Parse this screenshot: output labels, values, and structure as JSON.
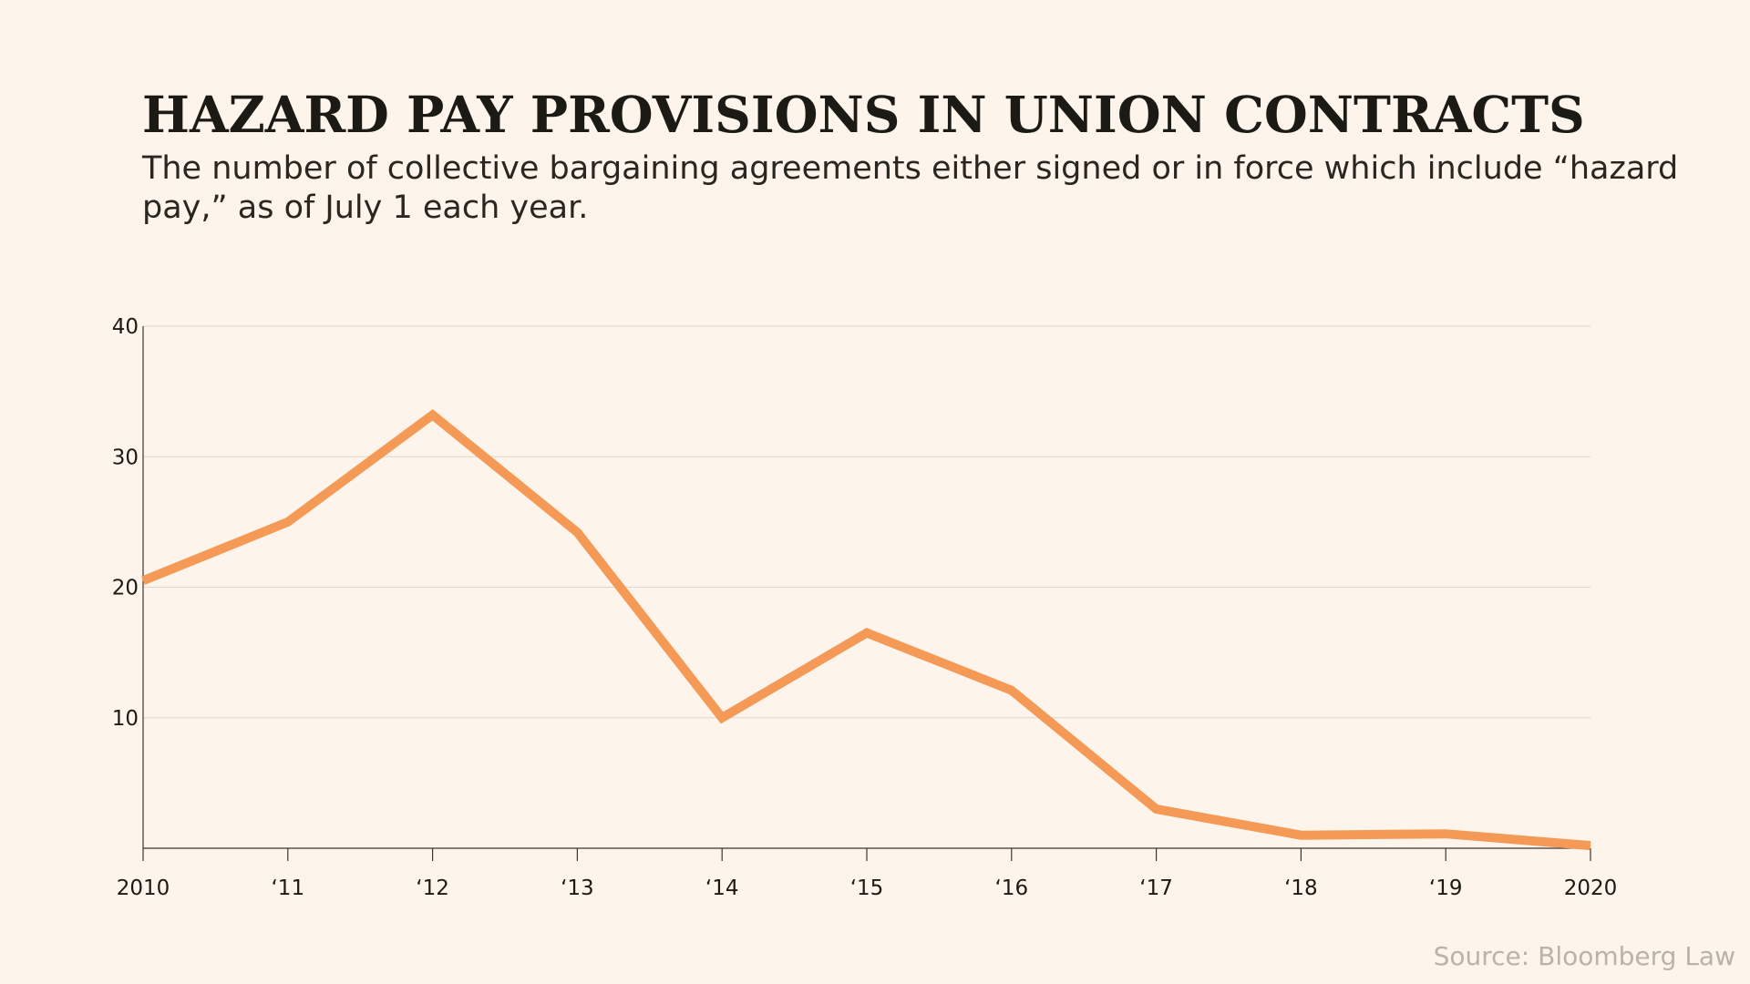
{
  "chart_data": {
    "type": "line",
    "title": "HAZARD PAY PROVISIONS IN UNION CONTRACTS",
    "subtitle": "The number of collective bargaining agreements either signed or in force which include “hazard pay,” as of July 1 each year.",
    "source": "Source: Bloomberg Law",
    "x": [
      2010,
      2011,
      2012,
      2013,
      2014,
      2015,
      2016,
      2017,
      2018,
      2019,
      2020
    ],
    "x_tick_labels": [
      "2010",
      "‘11",
      "‘12",
      "‘13",
      "‘14",
      "‘15",
      "‘16",
      "‘17",
      "‘18",
      "‘19",
      "2020"
    ],
    "series": [
      {
        "values": [
          20.5,
          25,
          33.2,
          24.2,
          10,
          16.5,
          12.1,
          3,
          1,
          1.1,
          0.2
        ],
        "color": "#f59a56"
      }
    ],
    "ylim": [
      0,
      40
    ],
    "y_ticks": [
      10,
      20,
      30,
      40
    ],
    "y_tick_labels": [
      "10",
      "20",
      "30",
      "40"
    ],
    "grid": true,
    "xlabel": "",
    "ylabel": "",
    "colors": {
      "background": "#fdf4ec",
      "gridline": "#ddd6ce",
      "axis": "#3a3630",
      "line": "#f59a56"
    }
  }
}
